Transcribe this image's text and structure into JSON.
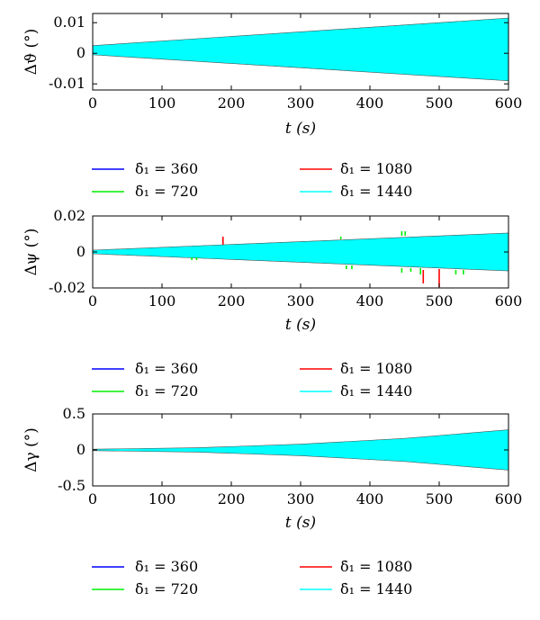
{
  "chart_data": [
    {
      "type": "line",
      "title": "",
      "ylabel": "Δϑ (°)",
      "xlabel": "t (s)",
      "xlim": [
        0,
        600
      ],
      "ylim": [
        -0.012,
        0.013
      ],
      "xticks": [
        0,
        100,
        200,
        300,
        400,
        500,
        600
      ],
      "xtick_labels": [
        "0",
        "100",
        "200",
        "300",
        "400",
        "500",
        "600"
      ],
      "yticks": [
        0.01,
        0,
        -0.01
      ],
      "ytick_labels": [
        "0.01",
        "0",
        "-0.01"
      ],
      "series": [
        {
          "name": "δ̇₁ = 360",
          "color": "#0000ff",
          "envelope": {
            "x": [
              0,
              600
            ],
            "upper": [
              0.0025,
              0.0115
            ],
            "lower": [
              -0.0005,
              -0.009
            ]
          }
        },
        {
          "name": "δ̇₁ = 720",
          "color": "#00ee00",
          "envelope": {
            "x": [
              0,
              600
            ],
            "upper": [
              0.0025,
              0.0115
            ],
            "lower": [
              -0.0005,
              -0.009
            ]
          }
        },
        {
          "name": "δ̇₁ = 1080",
          "color": "#ff0000",
          "envelope": {
            "x": [
              0,
              600
            ],
            "upper": [
              0.0025,
              0.0115
            ],
            "lower": [
              -0.0005,
              -0.009
            ]
          }
        },
        {
          "name": "δ̇₁ = 1440",
          "color": "#00ffff",
          "envelope": {
            "x": [
              0,
              600
            ],
            "upper": [
              0.0025,
              0.0115
            ],
            "lower": [
              -0.0005,
              -0.009
            ]
          }
        }
      ],
      "spikes": [],
      "legend": [
        {
          "label": "δ̇₁ = 360",
          "color": "#0000ff"
        },
        {
          "label": "δ̇₁ = 1080",
          "color": "#ff0000"
        },
        {
          "label": "δ̇₁ = 720",
          "color": "#00ee00"
        },
        {
          "label": "δ̇₁ = 1440",
          "color": "#00ffff"
        }
      ],
      "legend_position": "below"
    },
    {
      "type": "line",
      "title": "",
      "ylabel": "Δψ (°)",
      "xlabel": "t (s)",
      "xlim": [
        0,
        600
      ],
      "ylim": [
        -0.02,
        0.02
      ],
      "xticks": [
        0,
        100,
        200,
        300,
        400,
        500,
        600
      ],
      "xtick_labels": [
        "0",
        "100",
        "200",
        "300",
        "400",
        "500",
        "600"
      ],
      "yticks": [
        0.02,
        0,
        -0.02
      ],
      "ytick_labels": [
        "0.02",
        "0",
        "-0.02"
      ],
      "series": [
        {
          "name": "δ̇₁ = 360",
          "color": "#0000ff",
          "envelope": {
            "x": [
              0,
              600
            ],
            "upper": [
              0.001,
              0.0105
            ],
            "lower": [
              -0.001,
              -0.0105
            ]
          }
        },
        {
          "name": "δ̇₁ = 720",
          "color": "#00ee00",
          "envelope": {
            "x": [
              0,
              600
            ],
            "upper": [
              0.001,
              0.0105
            ],
            "lower": [
              -0.001,
              -0.0105
            ]
          }
        },
        {
          "name": "δ̇₁ = 1080",
          "color": "#ff0000",
          "envelope": {
            "x": [
              0,
              600
            ],
            "upper": [
              0.001,
              0.0105
            ],
            "lower": [
              -0.001,
              -0.0105
            ]
          }
        },
        {
          "name": "δ̇₁ = 1440",
          "color": "#00ffff",
          "envelope": {
            "x": [
              0,
              600
            ],
            "upper": [
              0.001,
              0.0105
            ],
            "lower": [
              -0.001,
              -0.0105
            ]
          }
        }
      ],
      "spikes": [
        {
          "x": 143,
          "y0": -0.003,
          "y1": -0.0045,
          "color": "#00ee00"
        },
        {
          "x": 150,
          "y0": -0.003,
          "y1": -0.0045,
          "color": "#00ee00"
        },
        {
          "x": 188,
          "y0": 0.004,
          "y1": 0.0085,
          "color": "#ff0000"
        },
        {
          "x": 358,
          "y0": 0.007,
          "y1": 0.0085,
          "color": "#00ee00"
        },
        {
          "x": 366,
          "y0": -0.0075,
          "y1": -0.0095,
          "color": "#00ee00"
        },
        {
          "x": 374,
          "y0": -0.0075,
          "y1": -0.0095,
          "color": "#00ee00"
        },
        {
          "x": 446,
          "y0": 0.009,
          "y1": 0.0115,
          "color": "#00ee00"
        },
        {
          "x": 451,
          "y0": 0.009,
          "y1": 0.0115,
          "color": "#00ee00"
        },
        {
          "x": 446,
          "y0": -0.009,
          "y1": -0.0115,
          "color": "#00ee00"
        },
        {
          "x": 459,
          "y0": -0.009,
          "y1": -0.011,
          "color": "#00ee00"
        },
        {
          "x": 473,
          "y0": -0.009,
          "y1": -0.0125,
          "color": "#00ee00"
        },
        {
          "x": 477,
          "y0": -0.01,
          "y1": -0.0175,
          "color": "#ff0000"
        },
        {
          "x": 500,
          "y0": -0.0095,
          "y1": -0.0195,
          "color": "#ff0000"
        },
        {
          "x": 524,
          "y0": -0.01,
          "y1": -0.0125,
          "color": "#00ee00"
        },
        {
          "x": 535,
          "y0": -0.01,
          "y1": -0.0125,
          "color": "#00ee00"
        }
      ],
      "legend": [
        {
          "label": "δ̇₁ = 360",
          "color": "#0000ff"
        },
        {
          "label": "δ̇₁ = 1080",
          "color": "#ff0000"
        },
        {
          "label": "δ̇₁ = 720",
          "color": "#00ee00"
        },
        {
          "label": "δ̇₁ = 1440",
          "color": "#00ffff"
        }
      ],
      "legend_position": "below"
    },
    {
      "type": "line",
      "title": "",
      "ylabel": "Δγ (°)",
      "xlabel": "t (s)",
      "xlim": [
        0,
        600
      ],
      "ylim": [
        -0.5,
        0.5
      ],
      "xticks": [
        0,
        100,
        200,
        300,
        400,
        500,
        600
      ],
      "xtick_labels": [
        "0",
        "100",
        "200",
        "300",
        "400",
        "500",
        "600"
      ],
      "yticks": [
        0.5,
        0,
        -0.5
      ],
      "ytick_labels": [
        "0.5",
        "0",
        "-0.5"
      ],
      "series": [
        {
          "name": "δ̇₁ = 360",
          "color": "#0000ff",
          "envelope": {
            "x": [
              0,
              150,
              300,
              450,
              600
            ],
            "upper": [
              0.01,
              0.03,
              0.08,
              0.16,
              0.28
            ],
            "lower": [
              -0.01,
              -0.03,
              -0.08,
              -0.16,
              -0.28
            ]
          }
        },
        {
          "name": "δ̇₁ = 720",
          "color": "#00ee00",
          "envelope": {
            "x": [
              0,
              150,
              300,
              450,
              600
            ],
            "upper": [
              0.01,
              0.03,
              0.08,
              0.16,
              0.28
            ],
            "lower": [
              -0.01,
              -0.03,
              -0.08,
              -0.16,
              -0.28
            ]
          }
        },
        {
          "name": "δ̇₁ = 1080",
          "color": "#ff0000",
          "envelope": {
            "x": [
              0,
              150,
              300,
              450,
              600
            ],
            "upper": [
              0.01,
              0.03,
              0.08,
              0.16,
              0.28
            ],
            "lower": [
              -0.01,
              -0.03,
              -0.08,
              -0.16,
              -0.28
            ]
          }
        },
        {
          "name": "δ̇₁ = 1440",
          "color": "#00ffff",
          "envelope": {
            "x": [
              0,
              150,
              300,
              450,
              600
            ],
            "upper": [
              0.01,
              0.03,
              0.08,
              0.16,
              0.28
            ],
            "lower": [
              -0.01,
              -0.03,
              -0.08,
              -0.16,
              -0.28
            ]
          }
        }
      ],
      "spikes": [],
      "legend": [
        {
          "label": "δ̇₁ = 360",
          "color": "#0000ff"
        },
        {
          "label": "δ̇₁ = 1080",
          "color": "#ff0000"
        },
        {
          "label": "δ̇₁ = 720",
          "color": "#00ee00"
        },
        {
          "label": "δ̇₁ = 1440",
          "color": "#00ffff"
        }
      ],
      "legend_position": "below"
    }
  ]
}
